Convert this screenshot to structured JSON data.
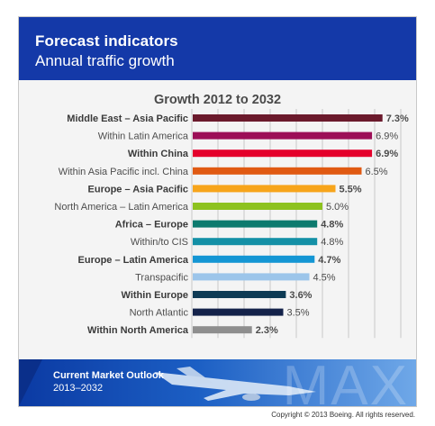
{
  "header": {
    "title": "Forecast indicators",
    "subtitle": "Annual traffic growth"
  },
  "chart_data": {
    "type": "bar",
    "orientation": "horizontal",
    "title": "Growth 2012 to 2032",
    "categories": [
      "Middle East – Asia Pacific",
      "Within Latin America",
      "Within China",
      "Within Asia Pacific incl. China",
      "Europe – Asia Pacific",
      "North America – Latin America",
      "Africa – Europe",
      "Within/to CIS",
      "Europe – Latin America",
      "Transpacific",
      "Within Europe",
      "North Atlantic",
      "Within North America"
    ],
    "values": [
      7.3,
      6.9,
      6.9,
      6.5,
      5.5,
      5.0,
      4.8,
      4.8,
      4.7,
      4.5,
      3.6,
      3.5,
      2.3
    ],
    "value_labels": [
      "7.3%",
      "6.9%",
      "6.9%",
      "6.5%",
      "5.5%",
      "5.0%",
      "4.8%",
      "4.8%",
      "4.7%",
      "4.5%",
      "3.6%",
      "3.5%",
      "2.3%"
    ],
    "bold": [
      true,
      false,
      true,
      false,
      true,
      false,
      true,
      false,
      true,
      false,
      true,
      false,
      true
    ],
    "colors": [
      "#6b1a2c",
      "#9c0f57",
      "#e4002b",
      "#e05a12",
      "#f7a51b",
      "#8dc21f",
      "#0c7a6e",
      "#1490a6",
      "#1496d4",
      "#9cc5ea",
      "#0e3b55",
      "#14224a",
      "#8e8e8e"
    ],
    "xlim": [
      0,
      8
    ],
    "grid": true
  },
  "footer": {
    "title": "Current Market Outlook",
    "years": "2013–2032",
    "watermark": "MAX"
  },
  "copyright": "Copyright © 2013 Boeing. All rights reserved."
}
